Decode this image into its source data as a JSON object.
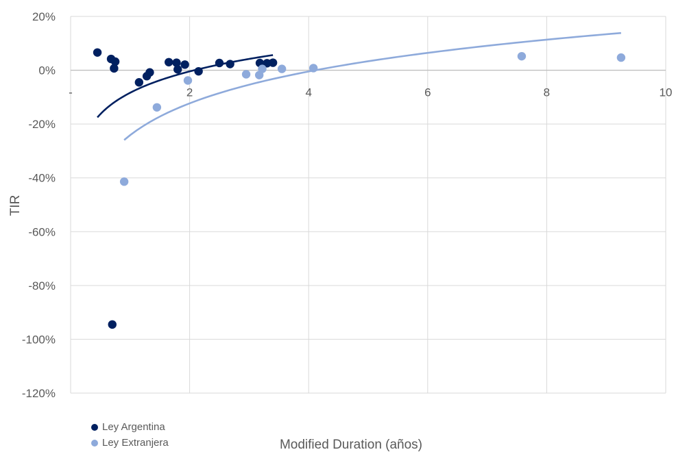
{
  "chart_data": {
    "type": "scatter",
    "xlabel": "Modified Duration (años)",
    "ylabel": "TIR",
    "xlim": [
      0,
      10
    ],
    "ylim": [
      -1.2,
      0.2
    ],
    "x_ticks": [
      {
        "value": 0,
        "label": "-"
      },
      {
        "value": 2,
        "label": "2"
      },
      {
        "value": 4,
        "label": "4"
      },
      {
        "value": 6,
        "label": "6"
      },
      {
        "value": 8,
        "label": "8"
      },
      {
        "value": 10,
        "label": "10"
      }
    ],
    "y_ticks": [
      {
        "value": 0.2,
        "label": "20%"
      },
      {
        "value": 0.0,
        "label": "0%"
      },
      {
        "value": -0.2,
        "label": "-20%"
      },
      {
        "value": -0.4,
        "label": "-40%"
      },
      {
        "value": -0.6,
        "label": "-60%"
      },
      {
        "value": -0.8,
        "label": "-80%"
      },
      {
        "value": -1.0,
        "label": "-100%"
      },
      {
        "value": -1.2,
        "label": "-120%"
      }
    ],
    "grid": true,
    "legend_position": "bottom-left",
    "series": [
      {
        "name": "Ley Argentina",
        "color": "#002060",
        "points": [
          [
            0.45,
            0.066
          ],
          [
            0.68,
            0.042
          ],
          [
            0.75,
            0.032
          ],
          [
            0.73,
            0.007
          ],
          [
            0.7,
            -0.945
          ],
          [
            1.15,
            -0.045
          ],
          [
            1.28,
            -0.022
          ],
          [
            1.33,
            -0.008
          ],
          [
            1.65,
            0.03
          ],
          [
            1.78,
            0.028
          ],
          [
            1.8,
            0.003
          ],
          [
            1.92,
            0.021
          ],
          [
            2.15,
            -0.004
          ],
          [
            2.5,
            0.027
          ],
          [
            2.68,
            0.023
          ],
          [
            3.18,
            0.027
          ],
          [
            3.3,
            0.026
          ],
          [
            3.4,
            0.028
          ]
        ],
        "trendline": {
          "type": "log",
          "x_from": 0.45,
          "x_to": 3.4,
          "a": 0.1145,
          "b": -0.0837
        }
      },
      {
        "name": "Ley Extranjera",
        "color": "#8EAADB",
        "points": [
          [
            0.9,
            -0.414
          ],
          [
            1.45,
            -0.138
          ],
          [
            1.97,
            -0.038
          ],
          [
            2.95,
            -0.015
          ],
          [
            3.17,
            -0.018
          ],
          [
            3.22,
            0.005
          ],
          [
            3.55,
            0.005
          ],
          [
            4.08,
            0.008
          ],
          [
            7.58,
            0.052
          ],
          [
            9.25,
            0.047
          ]
        ],
        "trendline": {
          "type": "log",
          "x_from": 0.9,
          "x_to": 9.25,
          "a": 0.1707,
          "b": -0.2413
        }
      }
    ]
  }
}
